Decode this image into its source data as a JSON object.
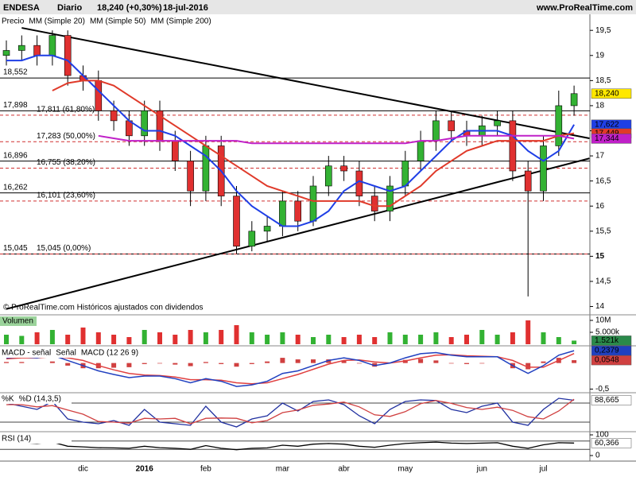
{
  "chart_data": [
    {
      "type": "candlestick",
      "title": "ENDESA",
      "period": "Diario",
      "last_label": "18,240 (+0,30%)",
      "date": "18-jul-2016",
      "source": "www.ProRealTime.com",
      "price_label": "Precio",
      "note": "© ProRealTime.com  Históricos ajustados con dividendos",
      "categories": [
        null,
        null,
        null,
        null,
        null,
        "dic",
        null,
        null,
        null,
        "2016",
        null,
        null,
        null,
        "feb",
        null,
        null,
        null,
        null,
        "mar",
        null,
        null,
        null,
        "abr",
        null,
        null,
        null,
        "may",
        null,
        null,
        null,
        null,
        "jun",
        null,
        null,
        null,
        "jul",
        null,
        null
      ],
      "open": [
        19.0,
        19.1,
        19.2,
        19.0,
        19.4,
        18.6,
        18.5,
        17.9,
        17.7,
        17.4,
        17.9,
        17.3,
        16.9,
        16.3,
        17.2,
        16.2,
        15.2,
        15.5,
        15.6,
        16.1,
        15.7,
        16.4,
        16.8,
        16.7,
        16.2,
        15.9,
        16.4,
        16.9,
        17.3,
        17.7,
        17.5,
        17.4,
        17.6,
        17.7,
        16.7,
        16.3,
        17.2,
        18.0
      ],
      "high": [
        19.3,
        19.4,
        19.4,
        19.5,
        19.5,
        18.8,
        18.7,
        18.1,
        17.9,
        18.1,
        18.1,
        17.5,
        17.1,
        17.4,
        17.4,
        16.4,
        15.7,
        15.8,
        16.3,
        16.3,
        16.6,
        17.0,
        17.0,
        16.9,
        16.4,
        16.6,
        17.1,
        17.5,
        17.9,
        17.9,
        17.7,
        17.8,
        17.9,
        17.9,
        16.9,
        17.4,
        18.3,
        18.4
      ],
      "low": [
        18.8,
        18.9,
        18.8,
        18.8,
        18.4,
        18.3,
        17.7,
        17.5,
        17.2,
        17.2,
        17.1,
        16.7,
        16.0,
        16.1,
        16.0,
        15.05,
        15.1,
        15.3,
        15.4,
        15.5,
        15.6,
        16.2,
        16.5,
        16.0,
        15.7,
        15.7,
        16.2,
        16.7,
        17.1,
        17.3,
        17.2,
        17.2,
        17.4,
        16.5,
        14.2,
        16.1,
        17.0,
        17.8
      ],
      "close": [
        19.1,
        19.2,
        19.0,
        19.4,
        18.6,
        18.5,
        17.9,
        17.7,
        17.4,
        17.9,
        17.3,
        16.9,
        16.3,
        17.2,
        16.2,
        15.2,
        15.5,
        15.6,
        16.1,
        15.7,
        16.4,
        16.8,
        16.7,
        16.2,
        15.9,
        16.4,
        16.9,
        17.3,
        17.7,
        17.5,
        17.4,
        17.6,
        17.7,
        16.7,
        16.3,
        17.2,
        18.0,
        18.24
      ],
      "close_label": "18,240",
      "up_color": "#33b233",
      "down_color": "#e03030",
      "series": [
        {
          "name": "MM (Simple 20)",
          "color": "#1f3fe6",
          "last_label": "17,622",
          "values": [
            18.9,
            18.9,
            19.0,
            19.0,
            18.9,
            18.6,
            18.3,
            18.0,
            17.7,
            17.5,
            17.5,
            17.4,
            17.2,
            17.0,
            16.7,
            16.3,
            16.0,
            15.8,
            15.6,
            15.6,
            15.7,
            15.9,
            16.3,
            16.5,
            16.4,
            16.3,
            16.4,
            16.7,
            17.0,
            17.3,
            17.5,
            17.5,
            17.5,
            17.4,
            17.1,
            16.9,
            17.1,
            17.622
          ]
        },
        {
          "name": "MM (Simple 50)",
          "color": "#e03a2a",
          "last_label": "17,449",
          "values": [
            null,
            null,
            null,
            18.3,
            18.45,
            18.5,
            18.5,
            18.4,
            18.2,
            18.0,
            17.8,
            17.6,
            17.4,
            17.2,
            17.0,
            16.8,
            16.6,
            16.4,
            16.3,
            16.2,
            16.1,
            16.1,
            16.1,
            16.1,
            16.0,
            16.0,
            16.2,
            16.4,
            16.7,
            16.9,
            17.1,
            17.2,
            17.3,
            17.3,
            17.3,
            17.3,
            17.4,
            17.449
          ]
        },
        {
          "name": "MM (Simple 200)",
          "color": "#c020c8",
          "last_label": "17,344",
          "values": [
            null,
            null,
            null,
            null,
            null,
            null,
            17.4,
            17.35,
            17.3,
            17.3,
            17.3,
            17.3,
            17.3,
            17.3,
            17.3,
            17.3,
            17.25,
            17.25,
            17.25,
            17.25,
            17.25,
            17.25,
            17.25,
            17.25,
            17.25,
            17.25,
            17.25,
            17.3,
            17.3,
            17.35,
            17.4,
            17.4,
            17.4,
            17.4,
            17.4,
            17.4,
            17.4,
            17.344
          ]
        }
      ],
      "levels": [
        {
          "value": 18.552,
          "label": "18,552"
        },
        {
          "value": 17.898,
          "label": "17,898"
        },
        {
          "value": 16.896,
          "label": "16,896"
        },
        {
          "value": 16.262,
          "label": "16,262"
        },
        {
          "value": 15.045,
          "label": "15,045"
        }
      ],
      "fibonacci": [
        {
          "value": 17.811,
          "label": "17,811 (61,80%)"
        },
        {
          "value": 17.283,
          "label": "17,283 (50,00%)"
        },
        {
          "value": 16.755,
          "label": "16,755 (38,20%)"
        },
        {
          "value": 16.101,
          "label": "16,101 (23,60%)"
        },
        {
          "value": 15.045,
          "label": "15,045 (0,00%)"
        }
      ],
      "trendlines": [
        {
          "from": [
            1,
            19.55
          ],
          "to": [
            38,
            17.35
          ]
        },
        {
          "from": [
            0,
            13.95
          ],
          "to": [
            38,
            16.95
          ]
        }
      ],
      "ylim": [
        13.85,
        19.63
      ],
      "yticks": [
        14,
        {
          "value": 14.5,
          "label": "14,5"
        },
        15,
        {
          "value": 15.5,
          "label": "15,5"
        },
        16,
        {
          "value": 16.5,
          "label": "16,5"
        },
        17,
        {
          "value": 17.5,
          "label": "17,5"
        },
        18,
        {
          "value": 18.5,
          "label": "18,5"
        },
        19,
        {
          "value": 19.5,
          "label": "19,5"
        }
      ]
    },
    {
      "type": "bar",
      "title": "Volumen",
      "color": "#2a8a4a",
      "last_label": "1.521k",
      "values": [
        4,
        3.5,
        5,
        6,
        4,
        7,
        5,
        4,
        3,
        6,
        5,
        4,
        6,
        5,
        6,
        8,
        5,
        4,
        5,
        4,
        3,
        4,
        3,
        4,
        3,
        5,
        4,
        4,
        5,
        3,
        4,
        6,
        4,
        5,
        10,
        5,
        3,
        1.521
      ],
      "ylim": [
        0,
        11
      ],
      "yticks": [
        {
          "value": 5,
          "label": "5.000k"
        },
        {
          "value": 10,
          "label": "10M"
        }
      ]
    },
    {
      "type": "macd",
      "series": [
        {
          "name": "MACD - señal",
          "color": "#d04040",
          "last_label": "0,0548",
          "values": [
            0.02,
            0.02,
            0,
            0.03,
            -0.05,
            -0.1,
            -0.1,
            -0.09,
            -0.08,
            -0.02,
            -0.01,
            -0.03,
            -0.06,
            0.02,
            -0.02,
            -0.07,
            -0.02,
            0.03,
            0.1,
            0.07,
            0.07,
            0.07,
            0.05,
            -0.01,
            -0.07,
            0,
            0.06,
            0.08,
            0.05,
            -0.01,
            -0.02,
            -0.01,
            0,
            -0.1,
            -0.12,
            0.03,
            0.1,
            0.0548
          ]
        },
        {
          "name": "Señal",
          "color": "#e04040",
          "values": [
            0.08,
            0.1,
            0.1,
            0.12,
            0.1,
            0.05,
            -0.05,
            -0.13,
            -0.2,
            -0.23,
            -0.24,
            -0.27,
            -0.32,
            -0.32,
            -0.33,
            -0.38,
            -0.4,
            -0.38,
            -0.3,
            -0.22,
            -0.12,
            -0.02,
            0.05,
            0.06,
            0.02,
            0.0,
            0.04,
            0.1,
            0.15,
            0.16,
            0.14,
            0.13,
            0.12,
            0.05,
            -0.08,
            -0.08,
            0.05,
            0.1831
          ]
        },
        {
          "name": "MACD (12 26 9)",
          "color": "#2040c0",
          "last_label": "0,2379",
          "values": [
            0.1,
            0.12,
            0.1,
            0.15,
            0.05,
            -0.05,
            -0.15,
            -0.22,
            -0.28,
            -0.25,
            -0.25,
            -0.3,
            -0.38,
            -0.3,
            -0.35,
            -0.45,
            -0.42,
            -0.35,
            -0.2,
            -0.15,
            -0.05,
            0.05,
            0.1,
            0.05,
            -0.05,
            0.0,
            0.1,
            0.18,
            0.2,
            0.15,
            0.12,
            0.12,
            0.12,
            -0.05,
            -0.2,
            -0.05,
            0.15,
            0.2379
          ]
        }
      ],
      "ylim": [
        -0.54,
        0.3
      ],
      "yticks": [
        {
          "value": -0.5,
          "label": "-0,5"
        }
      ]
    },
    {
      "type": "oscillator",
      "series": [
        {
          "name": "%K",
          "color": "#2030a0",
          "last_label": "88,665",
          "values": [
            80,
            70,
            60,
            85,
            30,
            20,
            15,
            25,
            10,
            60,
            20,
            15,
            10,
            70,
            20,
            5,
            30,
            40,
            80,
            55,
            85,
            90,
            75,
            40,
            15,
            60,
            85,
            90,
            88,
            60,
            50,
            70,
            80,
            20,
            10,
            60,
            95,
            88.665
          ]
        },
        {
          "name": "%D (14,3,5)",
          "color": "#d04040",
          "values": [
            75,
            75,
            68,
            72,
            58,
            45,
            22,
            20,
            17,
            32,
            30,
            32,
            15,
            32,
            33,
            32,
            18,
            25,
            50,
            58,
            73,
            77,
            83,
            68,
            43,
            38,
            53,
            78,
            88,
            79,
            66,
            60,
            67,
            57,
            37,
            30,
            55,
            92
          ]
        }
      ],
      "bands": [
        20,
        80
      ],
      "ylim": [
        -5,
        105
      ]
    },
    {
      "type": "oscillator",
      "series": [
        {
          "name": "RSI (14)",
          "color": "#000000",
          "last_label": "60,366",
          "values": [
            60,
            62,
            58,
            65,
            45,
            42,
            38,
            37,
            35,
            45,
            38,
            35,
            30,
            48,
            35,
            28,
            35,
            37,
            50,
            45,
            55,
            58,
            55,
            45,
            40,
            50,
            58,
            62,
            65,
            60,
            58,
            60,
            62,
            45,
            35,
            52,
            62,
            60.366
          ]
        }
      ],
      "bands": [
        30,
        70
      ],
      "ylim": [
        0,
        100
      ],
      "yticks": [
        0,
        100
      ]
    }
  ]
}
